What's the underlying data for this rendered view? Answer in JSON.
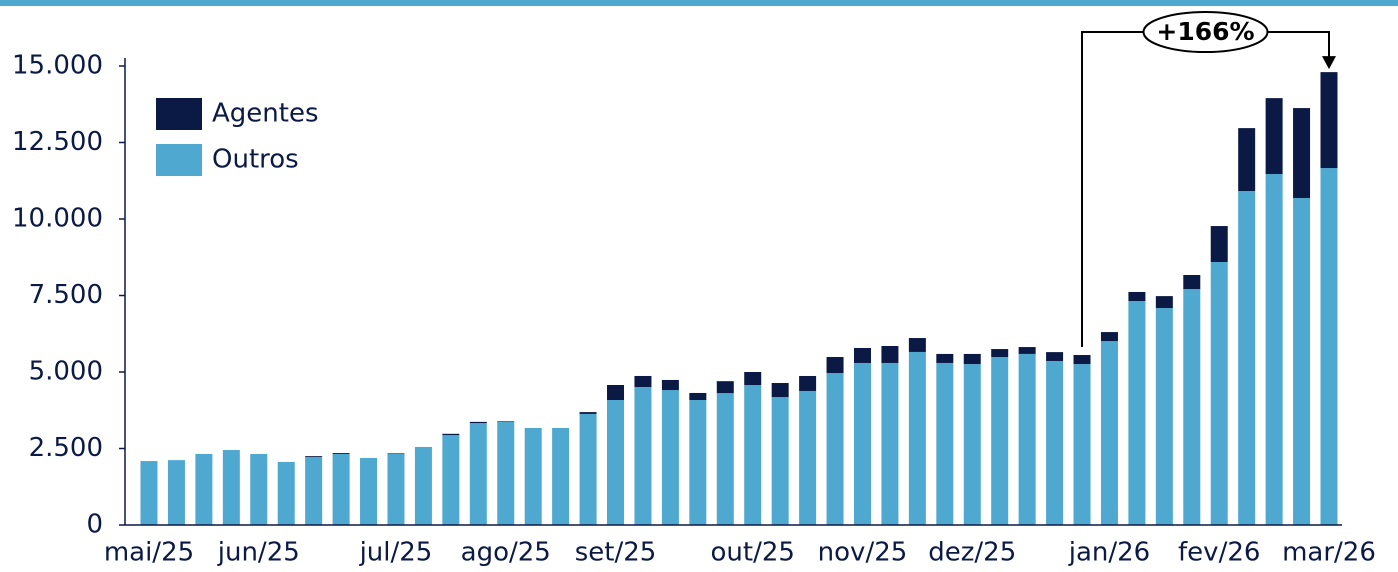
{
  "chart_data": {
    "type": "bar",
    "stacked": true,
    "categories": [
      "mai/25",
      null,
      null,
      null,
      "jun/25",
      null,
      null,
      null,
      null,
      "jul/25",
      null,
      null,
      null,
      "ago/25",
      null,
      null,
      null,
      "set/25",
      null,
      null,
      null,
      null,
      "out/25",
      null,
      null,
      null,
      "nov/25",
      null,
      null,
      null,
      "dez/25",
      null,
      null,
      null,
      null,
      "jan/26",
      null,
      null,
      null,
      "fev/26",
      null,
      null,
      null,
      "mar/26"
    ],
    "series": [
      {
        "name": "Outros",
        "color": "#4ea8cf",
        "values": [
          2090,
          2120,
          2320,
          2450,
          2320,
          2060,
          2220,
          2320,
          2190,
          2320,
          2550,
          2940,
          3330,
          3370,
          3170,
          3170,
          3630,
          4085,
          4510,
          4410,
          4085,
          4310,
          4575,
          4180,
          4380,
          4965,
          5295,
          5295,
          5655,
          5295,
          5260,
          5490,
          5590,
          5360,
          5260,
          6010,
          7320,
          7090,
          7710,
          8595,
          10915,
          11470,
          10685,
          11665
        ]
      },
      {
        "name": "Agentes",
        "color": "#0b1a45",
        "values": [
          0,
          0,
          0,
          0,
          0,
          0,
          30,
          30,
          0,
          20,
          0,
          40,
          40,
          20,
          0,
          0,
          60,
          490,
          360,
          330,
          230,
          390,
          425,
          460,
          490,
          525,
          490,
          555,
          455,
          295,
          330,
          260,
          225,
          290,
          295,
          295,
          295,
          390,
          460,
          1175,
          2055,
          2480,
          2940,
          3135
        ]
      }
    ],
    "ylim": [
      0,
      15000
    ],
    "yticks": [
      0,
      {
        "value": 2500,
        "label": "2.500"
      },
      {
        "value": 5000,
        "label": "5.000"
      },
      {
        "value": 7500,
        "label": "7.500"
      },
      {
        "value": 10000,
        "label": "10.000"
      },
      {
        "value": 12500,
        "label": "12.500"
      },
      {
        "value": 15000,
        "label": "15.000"
      }
    ],
    "legend": "upper left",
    "annotation": {
      "text": "+166%",
      "from": 34,
      "to": 43
    }
  }
}
